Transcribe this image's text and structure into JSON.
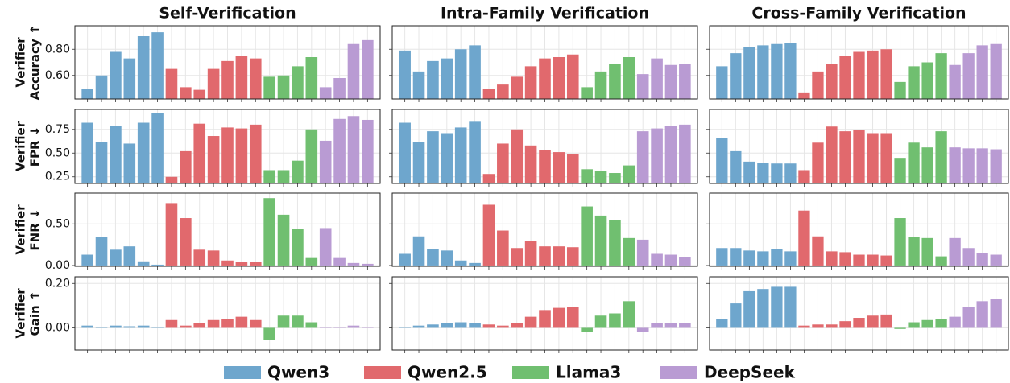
{
  "legend": [
    {
      "name": "Qwen3",
      "color": "#6ea6cd"
    },
    {
      "name": "Qwen2.5",
      "color": "#e1696d"
    },
    {
      "name": "Llama3",
      "color": "#70bf70"
    },
    {
      "name": "DeepSeek",
      "color": "#b99bd3"
    }
  ],
  "rows": [
    {
      "ylabel": [
        "Verifier",
        "Accuracy ↑"
      ],
      "ylim": [
        0.42,
        0.98
      ],
      "yticks": [
        {
          "value": 0.6,
          "label": "0.60"
        },
        {
          "value": 0.8,
          "label": "0.80"
        }
      ]
    },
    {
      "ylabel": [
        "Verifier",
        "FPR ↓"
      ],
      "ylim": [
        0.18,
        0.96
      ],
      "yticks": [
        {
          "value": 0.25,
          "label": "0.25"
        },
        {
          "value": 0.5,
          "label": "0.50"
        },
        {
          "value": 0.75,
          "label": "0.75"
        }
      ]
    },
    {
      "ylabel": [
        "Verifier",
        "FNR ↓"
      ],
      "ylim": [
        -0.01,
        0.87
      ],
      "yticks": [
        {
          "value": 0,
          "label": "0.00"
        },
        {
          "value": 0.5,
          "label": "0.50"
        }
      ]
    },
    {
      "ylabel": [
        "Verifier",
        "Gain ↑"
      ],
      "ylim": [
        -0.1,
        0.23
      ],
      "yticks": [
        {
          "value": 0,
          "label": "0.00"
        },
        {
          "value": 0.2,
          "label": "0.20"
        }
      ]
    }
  ],
  "chart_data": [
    {
      "type": "bar",
      "title": "Self-Verification",
      "grid": true,
      "panels": [
        [
          [
            0.5,
            0.6,
            0.78,
            0.73,
            0.9,
            0.93
          ],
          [
            0.65,
            0.51,
            0.49,
            0.65,
            0.71,
            0.75,
            0.73
          ],
          [
            0.59,
            0.6,
            0.67,
            0.74
          ],
          [
            0.51,
            0.58,
            0.84,
            0.87
          ]
        ],
        [
          [
            0.82,
            0.62,
            0.79,
            0.6,
            0.82,
            0.92
          ],
          [
            0.25,
            0.52,
            0.81,
            0.68,
            0.77,
            0.76,
            0.8
          ],
          [
            0.32,
            0.32,
            0.42,
            0.75
          ],
          [
            0.63,
            0.86,
            0.89,
            0.85
          ]
        ],
        [
          [
            0.13,
            0.34,
            0.19,
            0.23,
            0.05,
            0.01
          ],
          [
            0.75,
            0.57,
            0.19,
            0.18,
            0.06,
            0.04,
            0.04
          ],
          [
            0.81,
            0.61,
            0.44,
            0.09
          ],
          [
            0.45,
            0.09,
            0.03,
            0.02
          ]
        ],
        [
          [
            0.01,
            0.005,
            0.01,
            0.007,
            0.01,
            0.005
          ],
          [
            0.035,
            0.01,
            0.02,
            0.035,
            0.04,
            0.05,
            0.035
          ],
          [
            -0.055,
            0.055,
            0.055,
            0.025
          ],
          [
            0.005,
            0.005,
            0.01,
            0.005
          ]
        ]
      ]
    },
    {
      "type": "bar",
      "title": "Intra-Family Verification",
      "grid": true,
      "panels": [
        [
          [
            0.79,
            0.63,
            0.71,
            0.73,
            0.8,
            0.83
          ],
          [
            0.5,
            0.53,
            0.59,
            0.67,
            0.73,
            0.74,
            0.76
          ],
          [
            0.51,
            0.63,
            0.69,
            0.74
          ],
          [
            0.61,
            0.73,
            0.68,
            0.69
          ]
        ],
        [
          [
            0.82,
            0.62,
            0.73,
            0.71,
            0.77,
            0.83
          ],
          [
            0.28,
            0.6,
            0.75,
            0.58,
            0.53,
            0.51,
            0.49
          ],
          [
            0.33,
            0.31,
            0.29,
            0.37
          ],
          [
            0.73,
            0.76,
            0.79,
            0.8
          ]
        ],
        [
          [
            0.14,
            0.35,
            0.2,
            0.18,
            0.06,
            0.03
          ],
          [
            0.73,
            0.42,
            0.21,
            0.29,
            0.23,
            0.23,
            0.22
          ],
          [
            0.71,
            0.6,
            0.55,
            0.33
          ],
          [
            0.31,
            0.14,
            0.13,
            0.1
          ]
        ],
        [
          [
            0.005,
            0.01,
            0.015,
            0.02,
            0.025,
            0.02
          ],
          [
            0.015,
            0.01,
            0.02,
            0.05,
            0.08,
            0.09,
            0.095
          ],
          [
            -0.02,
            0.055,
            0.065,
            0.12
          ],
          [
            -0.02,
            0.02,
            0.02,
            0.02
          ]
        ]
      ]
    },
    {
      "type": "bar",
      "title": "Cross-Family Verification",
      "grid": true,
      "panels": [
        [
          [
            0.67,
            0.77,
            0.82,
            0.83,
            0.84,
            0.85
          ],
          [
            0.47,
            0.63,
            0.69,
            0.75,
            0.78,
            0.79,
            0.8
          ],
          [
            0.55,
            0.67,
            0.7,
            0.77
          ],
          [
            0.68,
            0.77,
            0.83,
            0.84
          ]
        ],
        [
          [
            0.66,
            0.52,
            0.41,
            0.4,
            0.39,
            0.39
          ],
          [
            0.32,
            0.61,
            0.78,
            0.73,
            0.74,
            0.71,
            0.71
          ],
          [
            0.45,
            0.61,
            0.56,
            0.73
          ],
          [
            0.56,
            0.55,
            0.55,
            0.54
          ]
        ],
        [
          [
            0.21,
            0.21,
            0.18,
            0.17,
            0.2,
            0.17
          ],
          [
            0.66,
            0.35,
            0.17,
            0.16,
            0.13,
            0.13,
            0.12
          ],
          [
            0.57,
            0.34,
            0.33,
            0.11
          ],
          [
            0.33,
            0.21,
            0.15,
            0.13
          ]
        ],
        [
          [
            0.04,
            0.11,
            0.165,
            0.175,
            0.185,
            0.185
          ],
          [
            0.01,
            0.015,
            0.015,
            0.03,
            0.045,
            0.055,
            0.06
          ],
          [
            -0.005,
            0.025,
            0.035,
            0.04
          ],
          [
            0.05,
            0.095,
            0.12,
            0.13
          ]
        ]
      ]
    }
  ]
}
